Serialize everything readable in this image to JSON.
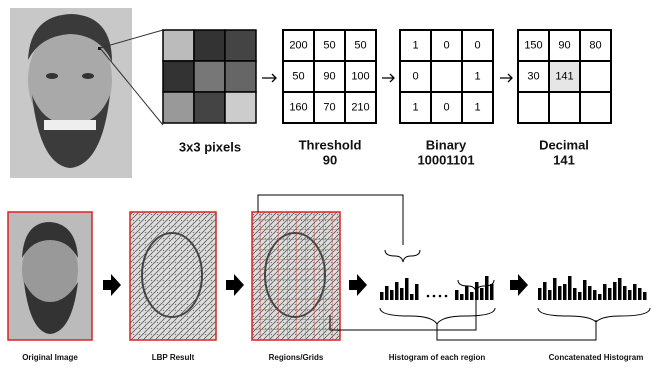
{
  "pixels_label": "3x3 pixels",
  "threshold": {
    "label": "Threshold",
    "value": 90,
    "grid": [
      [
        200,
        50,
        50
      ],
      [
        50,
        90,
        100
      ],
      [
        160,
        70,
        210
      ]
    ]
  },
  "binary": {
    "label": "Binary",
    "value": "10001101",
    "grid": [
      [
        1,
        0,
        0
      ],
      [
        0,
        null,
        1
      ],
      [
        1,
        0,
        1
      ]
    ]
  },
  "decimal": {
    "label": "Decimal",
    "value": 141,
    "grid": [
      [
        150,
        90,
        80
      ],
      [
        30,
        141,
        null
      ],
      [
        null,
        null,
        null
      ]
    ]
  },
  "steps": [
    "Original Image",
    "LBP Result",
    "Regions/Grids",
    "Histogram of each region",
    "Concatenated Histogram"
  ]
}
